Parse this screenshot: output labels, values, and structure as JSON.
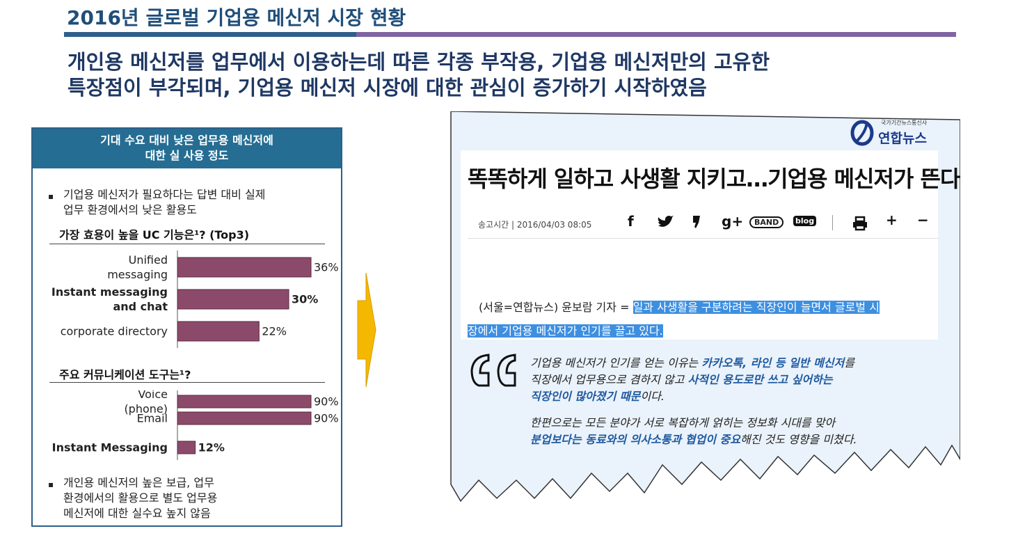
{
  "slide": {
    "title": "2016년 글로벌 기업용 메신저 시장 현황",
    "headline_line1": "개인용 메신저를 업무에서 이용하는데 따른 각종 부작용, 기업용 메신저만의 고유한",
    "headline_line2": "특장점이 부각되며, 기업용 메신저 시장에 대한 관심이 증가하기 시작하였음"
  },
  "panel": {
    "header_line1": "기대 수요 대비 낮은 업무용 메신저에",
    "header_line2": "대한 실 사용 정도",
    "bullet1_line1": "기업용 메신저가 필요하다는 답변 대비 실제",
    "bullet1_line2": "업무 환경에서의 낮은 활용도",
    "bullet2_line1": "개인용 메신저의 높은 보급, 업무",
    "bullet2_line2": "환경에서의 활용으로 별도 업무용",
    "bullet2_line3": "메신저에 대한 실수요 높지 않음",
    "bullet_mark": "▪"
  },
  "chart_data": [
    {
      "type": "bar",
      "orientation": "horizontal",
      "title": "가장 효용이 높을 UC 기능은¹? (Top3)",
      "categories": [
        "Unified messaging",
        "Instant messaging and chat",
        "corporate directory"
      ],
      "category_lines": [
        [
          "Unified",
          "messaging"
        ],
        [
          "Instant messaging",
          "and chat"
        ],
        [
          "corporate directory"
        ]
      ],
      "values": [
        36,
        30,
        22
      ],
      "value_labels": [
        "36%",
        "30%",
        "22%"
      ],
      "bold": [
        false,
        true,
        false
      ],
      "bar_color": "#8c4a6a",
      "xlim": [
        0,
        36
      ]
    },
    {
      "type": "bar",
      "orientation": "horizontal",
      "title": "주요 커뮤니케이션 도구는¹?",
      "categories": [
        "Voice (phone)",
        "Email",
        "Instant Messaging"
      ],
      "category_lines": [
        [
          "Voice",
          "(phone)"
        ],
        [
          "Email"
        ],
        [
          "Instant Messaging"
        ]
      ],
      "values": [
        90,
        90,
        12
      ],
      "value_labels": [
        "90%",
        "90%",
        "12%"
      ],
      "bold": [
        false,
        false,
        true
      ],
      "bar_color": "#8c4a6a",
      "xlim": [
        0,
        90
      ]
    }
  ],
  "news": {
    "logo_small": "국가기간뉴스통신사",
    "logo": "연합뉴스",
    "article_title": "똑똑하게 일하고 사생활 지키고…기업용 메신저가 뜬다",
    "sent_time": "송고시간 | 2016/04/03 08:05",
    "share_icons": [
      "facebook-icon",
      "twitter-icon",
      "kakaostory-icon",
      "google-plus-icon",
      "band-icon",
      "blog-icon",
      "print-icon",
      "zoom-in-icon",
      "zoom-out-icon"
    ],
    "icon_f": "f",
    "icon_gplus": "g+",
    "icon_band": "BAND",
    "icon_blog": "blog",
    "icon_plus": "+",
    "icon_minus": "−",
    "byline_prefix": "(서울=연합뉴스) 윤보람 기자 = ",
    "byline_highlight_1": "일과 사생활을 구분하려는 직장인이 늘면서 글로벌 시",
    "byline_highlight_2": "장에서 기업용 메신저가 인기를 끌고 있다.",
    "quote1_a": "기업용 메신저가 인기를 얻는 이유는 ",
    "quote1_b": "카카오톡, 라인 등 일반 메신저",
    "quote1_c": "를",
    "quote1_d": "직장에서 업무용으로 겸하지 않고 ",
    "quote1_e": "사적인 용도로만 쓰고 싶어하는",
    "quote1_f": "직장인이 많아졌기 때문",
    "quote1_g": "이다.",
    "quote2_a": "한편으로는 모든 분야가 서로 복잡하게 얽히는 정보화 시대를 맞아",
    "quote2_b": "분업보다는 동료와의 의사소통과 협업이 중요",
    "quote2_c": "해진 것도 영향을 미쳤다."
  },
  "colors": {
    "title": "#1f4e79",
    "headline": "#1f3864",
    "panel_header": "#256d93",
    "bar": "#8c4a6a",
    "arrow": "#f5b800",
    "news_bg": "#eaf2fb",
    "highlight": "#3d8fe0"
  }
}
